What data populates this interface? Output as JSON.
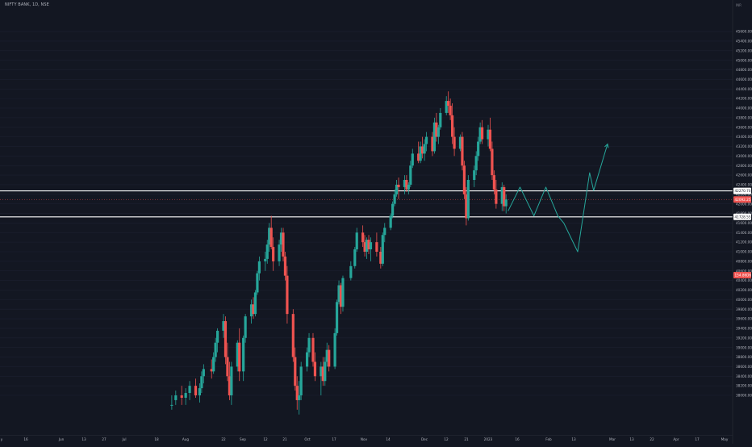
{
  "header": {
    "symbol_title": "NIFTY BANK, 1D, NSE",
    "currency": "INR"
  },
  "colors": {
    "background": "#131722",
    "up_candle": "#26a69a",
    "down_candle": "#ef5350",
    "level_line": "#ffffff",
    "projection": "#26a69a",
    "axis_text": "#b2b5be",
    "last_price_badge": "#ef5350"
  },
  "chart_data": {
    "type": "candlestick",
    "ylim": [
      37800,
      46800
    ],
    "y_ticks": [
      38000,
      38200,
      38400,
      38600,
      38800,
      39000,
      39200,
      39400,
      39600,
      39800,
      40000,
      40200,
      40400,
      40600,
      40800,
      41000,
      41200,
      41400,
      41600,
      41800,
      42000,
      42200,
      42400,
      42600,
      42800,
      43000,
      43200,
      43400,
      43600,
      43800,
      44000,
      44200,
      44400,
      44600,
      44800,
      45000,
      45200,
      45400,
      45600
    ],
    "x_tick_labels": [
      "y",
      "16",
      "Jun",
      "13",
      "27",
      "Jul",
      "18",
      "Aug",
      "22",
      "Sep",
      "12",
      "21",
      "Oct",
      "17",
      "Nov",
      "14",
      "Dec",
      "12",
      "21",
      "2023",
      "16",
      "Feb",
      "13",
      "Mar",
      "13",
      "22",
      "Apr",
      "17",
      "May"
    ],
    "price_labels": [
      {
        "label": "42270.70",
        "value": 42270.7,
        "kind": "level"
      },
      {
        "label": "42092.25",
        "value": 42092.25,
        "kind": "last"
      },
      {
        "label": "41728.55",
        "value": 41728.55,
        "kind": "level"
      },
      {
        "label": "154.86D6",
        "value": 41000,
        "kind": "countdown"
      }
    ],
    "horizontal_levels": [
      42270.7,
      41728.55
    ],
    "candles": [
      {
        "o": 37800,
        "h": 38000,
        "l": 37700,
        "c": 37800,
        "d": "2022-07-27"
      },
      {
        "o": 37900,
        "h": 38100,
        "l": 37800,
        "c": 38000,
        "d": "2022-07-29"
      },
      {
        "o": 38000,
        "h": 38200,
        "l": 37800,
        "c": 37950,
        "d": "2022-08-01"
      },
      {
        "o": 37950,
        "h": 38150,
        "l": 37800,
        "c": 38050,
        "d": "2022-08-03"
      },
      {
        "o": 38050,
        "h": 38300,
        "l": 37900,
        "c": 38200,
        "d": "2022-08-05"
      },
      {
        "o": 38200,
        "h": 38350,
        "l": 37950,
        "c": 38000,
        "d": "2022-08-08"
      },
      {
        "o": 38000,
        "h": 38250,
        "l": 37850,
        "c": 38150,
        "d": "2022-08-10"
      },
      {
        "o": 38150,
        "h": 38500,
        "l": 38050,
        "c": 38400,
        "d": "2022-08-11"
      },
      {
        "o": 38400,
        "h": 38650,
        "l": 38250,
        "c": 38550,
        "d": "2022-08-12"
      },
      {
        "o": 38550,
        "h": 38750,
        "l": 38350,
        "c": 38500,
        "d": "2022-08-16"
      },
      {
        "o": 38500,
        "h": 38900,
        "l": 38450,
        "c": 38800,
        "d": "2022-08-17"
      },
      {
        "o": 38800,
        "h": 39200,
        "l": 38700,
        "c": 39100,
        "d": "2022-08-18"
      },
      {
        "o": 39100,
        "h": 39400,
        "l": 38900,
        "c": 39350,
        "d": "2022-08-19"
      },
      {
        "o": 39350,
        "h": 39700,
        "l": 39200,
        "c": 39550,
        "d": "2022-08-22"
      },
      {
        "o": 39550,
        "h": 39650,
        "l": 38650,
        "c": 38800,
        "d": "2022-08-23"
      },
      {
        "o": 38800,
        "h": 39100,
        "l": 38300,
        "c": 38400,
        "d": "2022-08-24"
      },
      {
        "o": 38400,
        "h": 38700,
        "l": 37900,
        "c": 38000,
        "d": "2022-08-25"
      },
      {
        "o": 38000,
        "h": 38700,
        "l": 37800,
        "c": 38600,
        "d": "2022-08-26"
      },
      {
        "o": 38600,
        "h": 39150,
        "l": 38500,
        "c": 39100,
        "d": "2022-08-29"
      },
      {
        "o": 39100,
        "h": 39400,
        "l": 38300,
        "c": 38500,
        "d": "2022-08-30"
      },
      {
        "o": 38500,
        "h": 39250,
        "l": 38300,
        "c": 39200,
        "d": "2022-09-01"
      },
      {
        "o": 39200,
        "h": 39700,
        "l": 39100,
        "c": 39650,
        "d": "2022-09-02"
      },
      {
        "o": 39650,
        "h": 40000,
        "l": 39500,
        "c": 39900,
        "d": "2022-09-05"
      },
      {
        "o": 39900,
        "h": 40050,
        "l": 39600,
        "c": 39700,
        "d": "2022-09-06"
      },
      {
        "o": 39700,
        "h": 40200,
        "l": 39650,
        "c": 40150,
        "d": "2022-09-07"
      },
      {
        "o": 40150,
        "h": 40600,
        "l": 40100,
        "c": 40550,
        "d": "2022-09-08"
      },
      {
        "o": 40550,
        "h": 40900,
        "l": 40400,
        "c": 40800,
        "d": "2022-09-09"
      },
      {
        "o": 40800,
        "h": 41000,
        "l": 40600,
        "c": 40850,
        "d": "2022-09-12"
      },
      {
        "o": 40850,
        "h": 41250,
        "l": 40750,
        "c": 41150,
        "d": "2022-09-13"
      },
      {
        "o": 41150,
        "h": 41600,
        "l": 41000,
        "c": 41500,
        "d": "2022-09-14"
      },
      {
        "o": 41500,
        "h": 41750,
        "l": 41050,
        "c": 41100,
        "d": "2022-09-15"
      },
      {
        "o": 41100,
        "h": 41300,
        "l": 40600,
        "c": 40800,
        "d": "2022-09-16"
      },
      {
        "o": 40800,
        "h": 41250,
        "l": 40700,
        "c": 41150,
        "d": "2022-09-19"
      },
      {
        "o": 41150,
        "h": 41500,
        "l": 41000,
        "c": 41400,
        "d": "2022-09-20"
      },
      {
        "o": 41400,
        "h": 41500,
        "l": 40800,
        "c": 40900,
        "d": "2022-09-21"
      },
      {
        "o": 40900,
        "h": 41000,
        "l": 40400,
        "c": 40500,
        "d": "2022-09-22"
      },
      {
        "o": 40500,
        "h": 40700,
        "l": 39500,
        "c": 39700,
        "d": "2022-09-23"
      },
      {
        "o": 39700,
        "h": 39800,
        "l": 38700,
        "c": 38800,
        "d": "2022-09-26"
      },
      {
        "o": 38800,
        "h": 39000,
        "l": 38100,
        "c": 38200,
        "d": "2022-09-27"
      },
      {
        "o": 38200,
        "h": 38400,
        "l": 37700,
        "c": 37900,
        "d": "2022-09-28"
      },
      {
        "o": 37900,
        "h": 38300,
        "l": 37600,
        "c": 38000,
        "d": "2022-09-29"
      },
      {
        "o": 38000,
        "h": 38700,
        "l": 37900,
        "c": 38600,
        "d": "2022-09-30"
      },
      {
        "o": 38600,
        "h": 39000,
        "l": 38500,
        "c": 38900,
        "d": "2022-10-03"
      },
      {
        "o": 38900,
        "h": 39300,
        "l": 38800,
        "c": 39200,
        "d": "2022-10-04"
      },
      {
        "o": 39200,
        "h": 39300,
        "l": 38600,
        "c": 38700,
        "d": "2022-10-06"
      },
      {
        "o": 38700,
        "h": 38900,
        "l": 38300,
        "c": 38400,
        "d": "2022-10-07"
      },
      {
        "o": 38400,
        "h": 38700,
        "l": 38000,
        "c": 38600,
        "d": "2022-10-10"
      },
      {
        "o": 38600,
        "h": 38800,
        "l": 38200,
        "c": 38300,
        "d": "2022-10-11"
      },
      {
        "o": 38300,
        "h": 38800,
        "l": 38200,
        "c": 38700,
        "d": "2022-10-12"
      },
      {
        "o": 38700,
        "h": 39100,
        "l": 38600,
        "c": 38950,
        "d": "2022-10-13"
      },
      {
        "o": 38950,
        "h": 39050,
        "l": 38500,
        "c": 38600,
        "d": "2022-10-14"
      },
      {
        "o": 38600,
        "h": 39400,
        "l": 38550,
        "c": 39300,
        "d": "2022-10-17"
      },
      {
        "o": 39300,
        "h": 40000,
        "l": 39250,
        "c": 39950,
        "d": "2022-10-18"
      },
      {
        "o": 39950,
        "h": 40400,
        "l": 39900,
        "c": 40300,
        "d": "2022-10-19"
      },
      {
        "o": 40300,
        "h": 40350,
        "l": 39700,
        "c": 39850,
        "d": "2022-10-20"
      },
      {
        "o": 39850,
        "h": 40500,
        "l": 39750,
        "c": 40450,
        "d": "2022-10-21"
      },
      {
        "o": 40450,
        "h": 40800,
        "l": 40400,
        "c": 40700,
        "d": "2022-10-25"
      },
      {
        "o": 40700,
        "h": 41100,
        "l": 40650,
        "c": 41050,
        "d": "2022-10-27"
      },
      {
        "o": 41050,
        "h": 41500,
        "l": 41000,
        "c": 41400,
        "d": "2022-10-28"
      },
      {
        "o": 41400,
        "h": 41550,
        "l": 41100,
        "c": 41200,
        "d": "2022-10-31"
      },
      {
        "o": 41200,
        "h": 41350,
        "l": 40900,
        "c": 41000,
        "d": "2022-11-01"
      },
      {
        "o": 41000,
        "h": 41300,
        "l": 40850,
        "c": 41250,
        "d": "2022-11-02"
      },
      {
        "o": 41250,
        "h": 41350,
        "l": 40950,
        "c": 41050,
        "d": "2022-11-03"
      },
      {
        "o": 41050,
        "h": 41300,
        "l": 40800,
        "c": 41200,
        "d": "2022-11-04"
      },
      {
        "o": 41200,
        "h": 41400,
        "l": 40900,
        "c": 41000,
        "d": "2022-11-07"
      },
      {
        "o": 41000,
        "h": 41100,
        "l": 40650,
        "c": 40750,
        "d": "2022-11-09"
      },
      {
        "o": 40750,
        "h": 41400,
        "l": 40700,
        "c": 41350,
        "d": "2022-11-10"
      },
      {
        "o": 41350,
        "h": 41600,
        "l": 41200,
        "c": 41500,
        "d": "2022-11-11"
      },
      {
        "o": 41500,
        "h": 41800,
        "l": 41450,
        "c": 41750,
        "d": "2022-11-14"
      },
      {
        "o": 41750,
        "h": 42050,
        "l": 41700,
        "c": 42000,
        "d": "2022-11-15"
      },
      {
        "o": 42000,
        "h": 42300,
        "l": 41950,
        "c": 42200,
        "d": "2022-11-16"
      },
      {
        "o": 42200,
        "h": 42500,
        "l": 42150,
        "c": 42400,
        "d": "2022-11-17"
      },
      {
        "o": 42400,
        "h": 42550,
        "l": 42100,
        "c": 42350,
        "d": "2022-11-18"
      },
      {
        "o": 42350,
        "h": 42600,
        "l": 42200,
        "c": 42500,
        "d": "2022-11-21"
      },
      {
        "o": 42500,
        "h": 42600,
        "l": 42250,
        "c": 42300,
        "d": "2022-11-22"
      },
      {
        "o": 42300,
        "h": 42450,
        "l": 42200,
        "c": 42400,
        "d": "2022-11-23"
      },
      {
        "o": 42400,
        "h": 42900,
        "l": 42350,
        "c": 42800,
        "d": "2022-11-24"
      },
      {
        "o": 42800,
        "h": 43150,
        "l": 42750,
        "c": 43050,
        "d": "2022-11-25"
      },
      {
        "o": 43050,
        "h": 43300,
        "l": 42850,
        "c": 42900,
        "d": "2022-11-28"
      },
      {
        "o": 42900,
        "h": 43300,
        "l": 42850,
        "c": 43200,
        "d": "2022-11-29"
      },
      {
        "o": 43200,
        "h": 43400,
        "l": 42950,
        "c": 43050,
        "d": "2022-11-30"
      },
      {
        "o": 43050,
        "h": 43350,
        "l": 42900,
        "c": 43250,
        "d": "2022-12-01"
      },
      {
        "o": 43250,
        "h": 43500,
        "l": 43100,
        "c": 43400,
        "d": "2022-12-02"
      },
      {
        "o": 43400,
        "h": 43500,
        "l": 43000,
        "c": 43100,
        "d": "2022-12-05"
      },
      {
        "o": 43100,
        "h": 43800,
        "l": 43050,
        "c": 43700,
        "d": "2022-12-06"
      },
      {
        "o": 43700,
        "h": 43900,
        "l": 43300,
        "c": 43400,
        "d": "2022-12-07"
      },
      {
        "o": 43400,
        "h": 43650,
        "l": 43250,
        "c": 43600,
        "d": "2022-12-08"
      },
      {
        "o": 43600,
        "h": 44000,
        "l": 43550,
        "c": 43900,
        "d": "2022-12-09"
      },
      {
        "o": 43900,
        "h": 44250,
        "l": 43850,
        "c": 44150,
        "d": "2022-12-12"
      },
      {
        "o": 44150,
        "h": 44350,
        "l": 43900,
        "c": 44050,
        "d": "2022-12-13"
      },
      {
        "o": 44050,
        "h": 44200,
        "l": 43750,
        "c": 43850,
        "d": "2022-12-14"
      },
      {
        "o": 43850,
        "h": 44100,
        "l": 43250,
        "c": 43400,
        "d": "2022-12-15"
      },
      {
        "o": 43400,
        "h": 43600,
        "l": 43000,
        "c": 43150,
        "d": "2022-12-16"
      },
      {
        "o": 43150,
        "h": 43450,
        "l": 43100,
        "c": 43400,
        "d": "2022-12-19"
      },
      {
        "o": 43400,
        "h": 43500,
        "l": 42700,
        "c": 42800,
        "d": "2022-12-20"
      },
      {
        "o": 42800,
        "h": 42900,
        "l": 42100,
        "c": 42200,
        "d": "2022-12-21"
      },
      {
        "o": 42200,
        "h": 42350,
        "l": 41550,
        "c": 41700,
        "d": "2022-12-22"
      },
      {
        "o": 41700,
        "h": 42600,
        "l": 41650,
        "c": 42500,
        "d": "2022-12-23"
      },
      {
        "o": 42500,
        "h": 42800,
        "l": 42350,
        "c": 42700,
        "d": "2022-12-26"
      },
      {
        "o": 42700,
        "h": 43100,
        "l": 42600,
        "c": 43000,
        "d": "2022-12-27"
      },
      {
        "o": 43000,
        "h": 43400,
        "l": 42900,
        "c": 43300,
        "d": "2022-12-28"
      },
      {
        "o": 43300,
        "h": 43700,
        "l": 43250,
        "c": 43600,
        "d": "2022-12-29"
      },
      {
        "o": 43600,
        "h": 43750,
        "l": 43250,
        "c": 43350,
        "d": "2022-12-30"
      },
      {
        "o": 43350,
        "h": 43650,
        "l": 43200,
        "c": 43550,
        "d": "2023-01-02"
      },
      {
        "o": 43550,
        "h": 43800,
        "l": 43100,
        "c": 43150,
        "d": "2023-01-03"
      },
      {
        "o": 43150,
        "h": 43300,
        "l": 42500,
        "c": 42600,
        "d": "2023-01-04"
      },
      {
        "o": 42600,
        "h": 42700,
        "l": 42200,
        "c": 42300,
        "d": "2023-01-05"
      },
      {
        "o": 42300,
        "h": 42500,
        "l": 41900,
        "c": 42000,
        "d": "2023-01-06"
      },
      {
        "o": 42000,
        "h": 42450,
        "l": 41850,
        "c": 42350,
        "d": "2023-01-09"
      },
      {
        "o": 42350,
        "h": 42400,
        "l": 41850,
        "c": 41950,
        "d": "2023-01-10"
      },
      {
        "o": 41950,
        "h": 42200,
        "l": 41800,
        "c": 42092,
        "d": "2023-01-11"
      }
    ],
    "projection": [
      {
        "d": "2023-01-12",
        "v": 41850
      },
      {
        "d": "2023-01-18",
        "v": 42350
      },
      {
        "d": "2023-01-25",
        "v": 41750
      },
      {
        "d": "2023-01-31",
        "v": 42350
      },
      {
        "d": "2023-02-06",
        "v": 41750
      },
      {
        "d": "2023-02-09",
        "v": 41600
      },
      {
        "d": "2023-02-16",
        "v": 41000
      },
      {
        "d": "2023-02-22",
        "v": 42650
      },
      {
        "d": "2023-02-24",
        "v": 42280
      },
      {
        "d": "2023-03-03",
        "v": 43250
      }
    ]
  }
}
